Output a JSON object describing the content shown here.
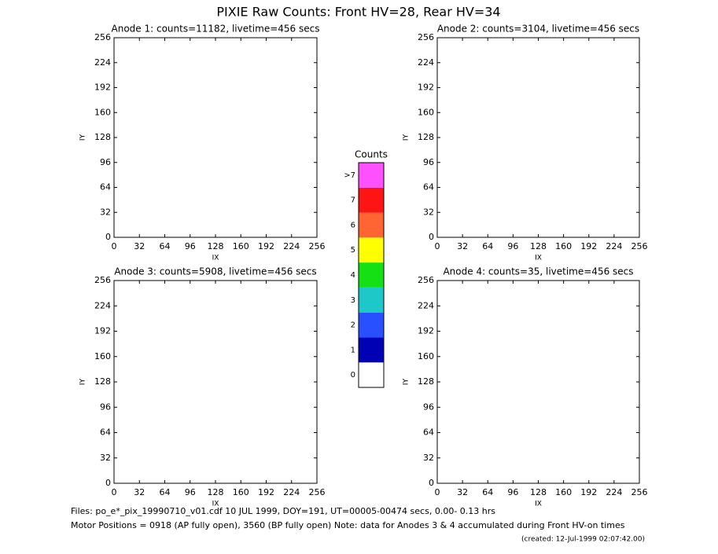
{
  "title": "PIXIE Raw Counts:  Front HV=28, Rear HV=34",
  "chart_data": [
    {
      "type": "heatmap",
      "title": "Anode 1: counts=11182, livetime=456 secs",
      "xlabel": "IX",
      "ylabel": "IY",
      "xlim": [
        0,
        256
      ],
      "xticks": [
        0,
        32,
        64,
        96,
        128,
        160,
        192,
        224,
        256
      ],
      "ylim": [
        0,
        256
      ],
      "yticks": [
        0,
        32,
        64,
        96,
        128,
        160,
        192,
        224,
        256
      ]
    },
    {
      "type": "heatmap",
      "title": "Anode 2: counts=3104, livetime=456 secs",
      "xlabel": "IX",
      "ylabel": "IY",
      "xlim": [
        0,
        256
      ],
      "xticks": [
        0,
        32,
        64,
        96,
        128,
        160,
        192,
        224,
        256
      ],
      "ylim": [
        0,
        256
      ],
      "yticks": [
        0,
        32,
        64,
        96,
        128,
        160,
        192,
        224,
        256
      ]
    },
    {
      "type": "heatmap",
      "title": "Anode 3: counts=5908, livetime=456 secs",
      "xlabel": "IX",
      "ylabel": "IY",
      "xlim": [
        0,
        256
      ],
      "xticks": [
        0,
        32,
        64,
        96,
        128,
        160,
        192,
        224,
        256
      ],
      "ylim": [
        0,
        256
      ],
      "yticks": [
        0,
        32,
        64,
        96,
        128,
        160,
        192,
        224,
        256
      ]
    },
    {
      "type": "heatmap",
      "title": "Anode 4: counts=35, livetime=456 secs",
      "xlabel": "IX",
      "ylabel": "IY",
      "xlim": [
        0,
        256
      ],
      "xticks": [
        0,
        32,
        64,
        96,
        128,
        160,
        192,
        224,
        256
      ],
      "ylim": [
        0,
        256
      ],
      "yticks": [
        0,
        32,
        64,
        96,
        128,
        160,
        192,
        224,
        256
      ]
    }
  ],
  "colorbar": {
    "title": "Counts",
    "levels": [
      0,
      1,
      2,
      3,
      4,
      5,
      6,
      7,
      ">7"
    ],
    "colors": [
      "#ffffff",
      "#0000b4",
      "#2850ff",
      "#1ec8c8",
      "#14e014",
      "#ffff00",
      "#ff6432",
      "#ff1414",
      "#ff50ff"
    ]
  },
  "footer": {
    "files": "Files: po_e*_pix_19990710_v01.cdf    10 JUL 1999, DOY=191, UT=00005-00474 secs,  0.00- 0.13 hrs",
    "motor": "Motor Positions = 0918 (AP fully open), 3560 (BP fully open)    Note: data for Anodes 3 & 4 accumulated during Front HV-on times",
    "created": "(created: 12-Jul-1999 02:07:42.00)"
  }
}
